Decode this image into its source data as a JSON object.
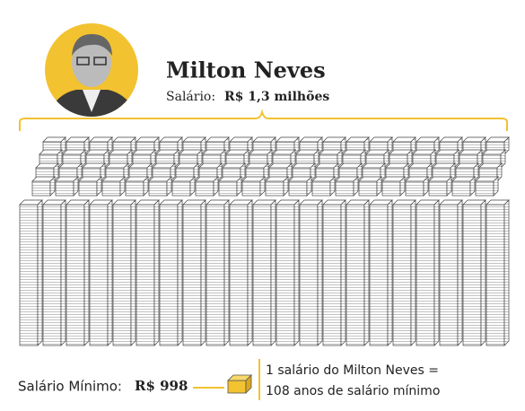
{
  "header": {
    "name": "Milton Neves",
    "salary_label": "Salário:",
    "salary_value": "R$ 1,3 milhões"
  },
  "footer": {
    "min_wage_label": "Salário Mínimo:",
    "min_wage_value": "R$ 998",
    "comparison": [
      "1 salário do Milton Neves =",
      "108 anos de salário mínimo"
    ]
  }
}
